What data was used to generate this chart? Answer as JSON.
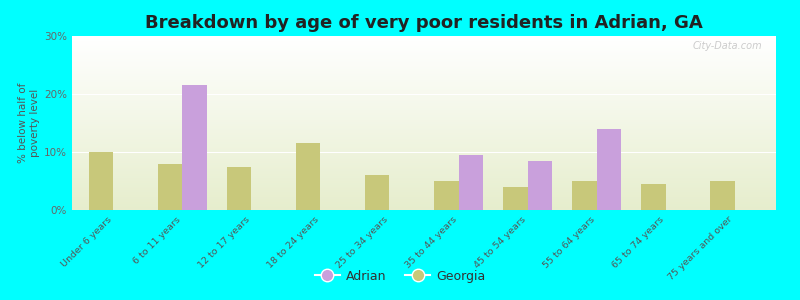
{
  "title": "Breakdown by age of very poor residents in Adrian, GA",
  "ylabel": "% below half of\npoverty level",
  "categories": [
    "Under 6 years",
    "6 to 11 years",
    "12 to 17 years",
    "18 to 24 years",
    "25 to 34 years",
    "35 to 44 years",
    "45 to 54 years",
    "55 to 64 years",
    "65 to 74 years",
    "75 years and over"
  ],
  "adrian_values": [
    0,
    21.5,
    0,
    0,
    0,
    9.5,
    8.5,
    14.0,
    0,
    0
  ],
  "georgia_values": [
    10.0,
    8.0,
    7.5,
    11.5,
    6.0,
    5.0,
    4.0,
    5.0,
    4.5,
    5.0
  ],
  "adrian_color": "#c9a0dc",
  "georgia_color": "#c8c87a",
  "background_color": "#00ffff",
  "ylim": [
    0,
    30
  ],
  "yticks": [
    0,
    10,
    20,
    30
  ],
  "ytick_labels": [
    "0%",
    "10%",
    "20%",
    "30%"
  ],
  "bar_width": 0.35,
  "title_fontsize": 13,
  "watermark": "City-Data.com"
}
